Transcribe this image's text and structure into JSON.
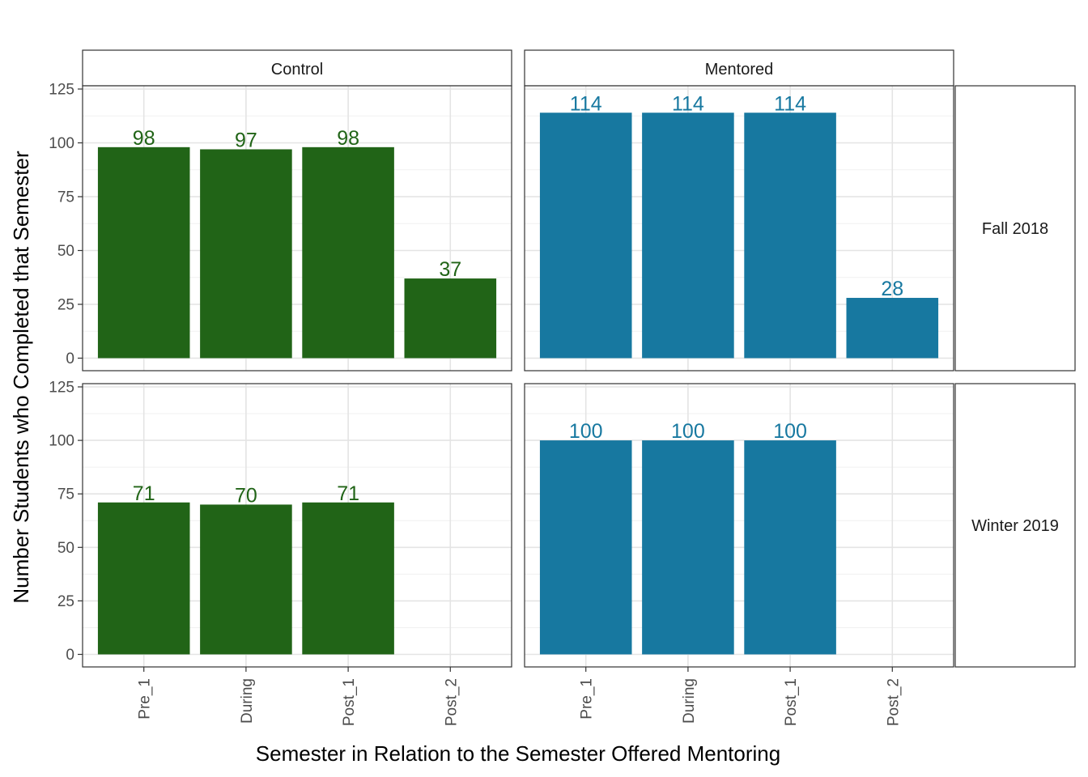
{
  "chart_data": {
    "type": "bar",
    "facet": "grid",
    "xlabel": "Semester in Relation to the Semester Offered Mentoring",
    "ylabel": "Number Students who Completed that Semester",
    "ylim": [
      0,
      125
    ],
    "yticks": [
      0,
      25,
      50,
      75,
      100,
      125
    ],
    "grid": true,
    "columns": [
      "Control",
      "Mentored"
    ],
    "rows": [
      "Fall 2018",
      "Winter 2019"
    ],
    "categories": [
      "Pre_1",
      "During",
      "Post_1",
      "Post_2"
    ],
    "colors": {
      "Control": "#216417",
      "Mentored": "#1778a0"
    },
    "panels": [
      {
        "column": "Control",
        "row": "Fall 2018",
        "values": [
          98,
          97,
          98,
          37
        ]
      },
      {
        "column": "Mentored",
        "row": "Fall 2018",
        "values": [
          114,
          114,
          114,
          28
        ]
      },
      {
        "column": "Control",
        "row": "Winter 2019",
        "values": [
          71,
          70,
          71,
          null
        ]
      },
      {
        "column": "Mentored",
        "row": "Winter 2019",
        "values": [
          100,
          100,
          100,
          null
        ]
      }
    ]
  }
}
